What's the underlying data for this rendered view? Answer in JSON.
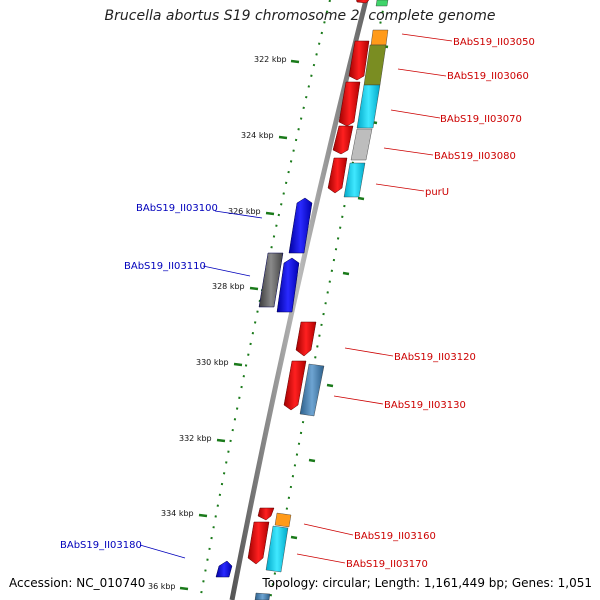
{
  "title": "Brucella abortus S19 chromosome 2, complete genome",
  "footer": {
    "accession": "Accession: NC_010740",
    "summary": "Topology: circular; Length: 1,161,449 bp; Genes: 1,051"
  },
  "ticks": [
    "322 kbp",
    "324 kbp",
    "326 kbp",
    "328 kbp",
    "330 kbp",
    "332 kbp",
    "334 kbp",
    "36 kbp"
  ],
  "gene_labels_forward": [
    "BAbS19_II03050",
    "BAbS19_II03060",
    "BAbS19_II03070",
    "BAbS19_II03080",
    "purU",
    "BAbS19_II03120",
    "BAbS19_II03130",
    "BAbS19_II03160",
    "BAbS19_II03170"
  ],
  "gene_labels_reverse": [
    "BAbS19_II03100",
    "BAbS19_II03110",
    "BAbS19_II03180"
  ],
  "colors": {
    "backbone": "#888888",
    "tick": "#1a7a1a",
    "forward_label": "#cc0000",
    "reverse_label": "#0000bb",
    "cds_forward": "#ee1111",
    "cds_reverse": "#1111ee",
    "cds_reverse_grey": "#666666"
  }
}
